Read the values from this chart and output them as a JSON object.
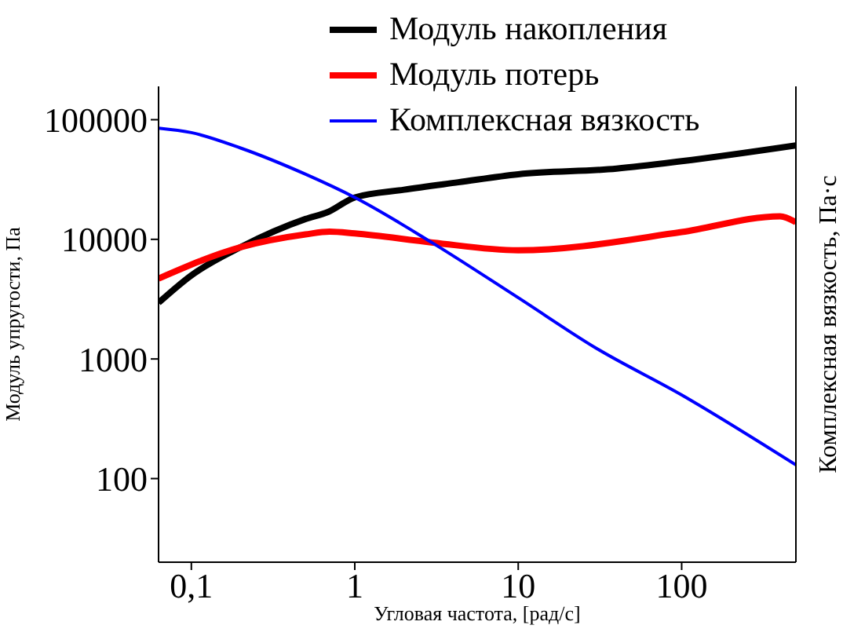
{
  "chart_data": {
    "type": "line",
    "xlabel": "Угловая частота, [рад/с]",
    "ylabel": "Модуль упругости, Па",
    "y2label": "Комплексная вязкость, Па·с",
    "log": "xy",
    "xlim": [
      0.063,
      500
    ],
    "xticks": [
      {
        "value": 0.1,
        "label": "0,1"
      },
      1,
      10,
      100
    ],
    "ylim": [
      20,
      190000
    ],
    "yticks": [
      100,
      1000,
      10000,
      100000
    ],
    "legend": "top",
    "marker": "none",
    "line_style": "solid",
    "series": [
      {
        "name": "Модуль накопления",
        "color": "#000000",
        "x": [
          0.063,
          0.1,
          0.2,
          0.5,
          0.69,
          1,
          2,
          4.3,
          10,
          40,
          100,
          500
        ],
        "values": [
          2950,
          5000,
          8600,
          14800,
          17000,
          22400,
          26000,
          30000,
          35000,
          39000,
          45000,
          61000
        ]
      },
      {
        "name": "Модуль потерь",
        "color": "#ff0000",
        "x": [
          0.063,
          0.2,
          0.5,
          0.7,
          1,
          3,
          10,
          100,
          400,
          500
        ],
        "values": [
          4700,
          8600,
          11000,
          11600,
          11200,
          9400,
          8100,
          11500,
          15600,
          13900
        ]
      },
      {
        "name": "Комплексная вязкость",
        "color": "#0000ff",
        "x": [
          0.063,
          0.1,
          0.2,
          0.5,
          1,
          3,
          10,
          30,
          100,
          500
        ],
        "values": [
          85000,
          78000,
          58000,
          35000,
          22400,
          9300,
          3250,
          1230,
          500,
          130
        ]
      }
    ]
  }
}
